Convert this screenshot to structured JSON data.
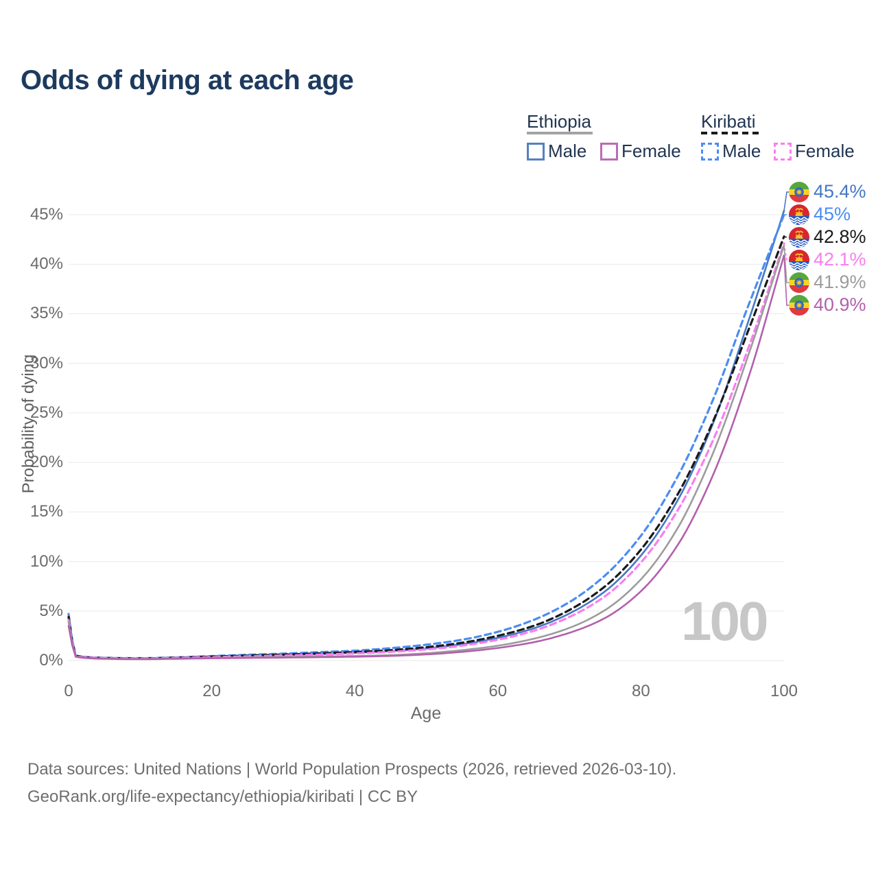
{
  "title": "Odds of dying at each age",
  "legend": {
    "groups": [
      {
        "country": "Ethiopia",
        "line_style": "solid",
        "underline_color": "#a3a3a3",
        "items": [
          {
            "label": "Male",
            "color": "#5480bf",
            "dash": false
          },
          {
            "label": "Female",
            "color": "#bb6cb4",
            "dash": false
          }
        ]
      },
      {
        "country": "Kiribati",
        "line_style": "dashed",
        "underline_color": "#1a1a1a",
        "items": [
          {
            "label": "Male",
            "color": "#4a8cf5",
            "dash": true
          },
          {
            "label": "Female",
            "color": "#fa7df0",
            "dash": true
          }
        ]
      }
    ]
  },
  "chart_data": {
    "type": "line",
    "title": "Odds of dying at each age",
    "xlabel": "Age",
    "ylabel": "Probability of dying",
    "xlim": [
      0,
      100
    ],
    "ylim": [
      0,
      47
    ],
    "x_ticks": [
      0,
      20,
      40,
      60,
      80,
      100
    ],
    "y_ticks": [
      0,
      5,
      10,
      15,
      20,
      25,
      30,
      35,
      40,
      45
    ],
    "y_tick_suffix": "%",
    "grid": "horizontal",
    "legend_position": "top-right",
    "watermark": "100",
    "ages": [
      0,
      1,
      5,
      10,
      15,
      20,
      25,
      30,
      35,
      40,
      45,
      50,
      55,
      60,
      65,
      70,
      75,
      80,
      85,
      90,
      95,
      100
    ],
    "series": [
      {
        "name": "Ethiopia Male",
        "flag": "ethiopia",
        "icon": "ethiopia-flag-icon",
        "color": "#4577c4",
        "dashed": false,
        "end_label": "45.4%",
        "values": [
          4.2,
          0.45,
          0.24,
          0.2,
          0.27,
          0.37,
          0.46,
          0.55,
          0.65,
          0.78,
          0.95,
          1.22,
          1.65,
          2.3,
          3.25,
          4.75,
          7.0,
          10.6,
          16.0,
          23.8,
          34.2,
          45.4
        ]
      },
      {
        "name": "Kiribati Male",
        "flag": "kiribati",
        "icon": "kiribati-flag-icon",
        "color": "#4a8cf5",
        "dashed": true,
        "end_label": "45%",
        "values": [
          4.7,
          0.5,
          0.28,
          0.24,
          0.32,
          0.45,
          0.58,
          0.7,
          0.85,
          1.0,
          1.25,
          1.6,
          2.1,
          2.9,
          4.1,
          5.9,
          8.6,
          12.6,
          18.4,
          26.2,
          35.8,
          45.0
        ]
      },
      {
        "name": "Kiribati",
        "flag": "kiribati",
        "icon": "kiribati-flag-icon",
        "color": "#1a1a1a",
        "dashed": true,
        "end_label": "42.8%",
        "values": [
          4.4,
          0.47,
          0.26,
          0.22,
          0.29,
          0.4,
          0.5,
          0.6,
          0.72,
          0.86,
          1.05,
          1.35,
          1.8,
          2.5,
          3.5,
          5.1,
          7.5,
          11.2,
          16.6,
          24.0,
          33.3,
          42.8
        ]
      },
      {
        "name": "Kiribati Female",
        "flag": "kiribati",
        "icon": "kiribati-flag-icon",
        "color": "#fa7df0",
        "dashed": true,
        "end_label": "42.1%",
        "values": [
          4.1,
          0.44,
          0.24,
          0.2,
          0.26,
          0.34,
          0.42,
          0.5,
          0.6,
          0.72,
          0.88,
          1.12,
          1.5,
          2.1,
          3.0,
          4.4,
          6.5,
          9.9,
          15.0,
          22.1,
          31.5,
          42.1
        ]
      },
      {
        "name": "Ethiopia",
        "flag": "ethiopia",
        "icon": "ethiopia-flag-icon",
        "color": "#9c9c9c",
        "dashed": false,
        "end_label": "41.9%",
        "values": [
          3.9,
          0.42,
          0.2,
          0.16,
          0.21,
          0.28,
          0.33,
          0.37,
          0.41,
          0.46,
          0.55,
          0.74,
          1.05,
          1.5,
          2.2,
          3.3,
          5.1,
          8.2,
          13.2,
          20.8,
          30.8,
          41.9
        ]
      },
      {
        "name": "Ethiopia Female",
        "flag": "ethiopia",
        "icon": "ethiopia-flag-icon",
        "color": "#b260ac",
        "dashed": false,
        "end_label": "40.9%",
        "values": [
          3.5,
          0.38,
          0.18,
          0.14,
          0.18,
          0.23,
          0.27,
          0.3,
          0.34,
          0.39,
          0.47,
          0.62,
          0.88,
          1.27,
          1.85,
          2.8,
          4.3,
          7.0,
          11.5,
          18.6,
          28.5,
          40.9
        ]
      }
    ]
  },
  "source": {
    "line1": "Data sources: United Nations | World Population Prospects (2026, retrieved 2026-03-10).",
    "line2": "GeoRank.org/life-expectancy/ethiopia/kiribati | CC BY"
  }
}
